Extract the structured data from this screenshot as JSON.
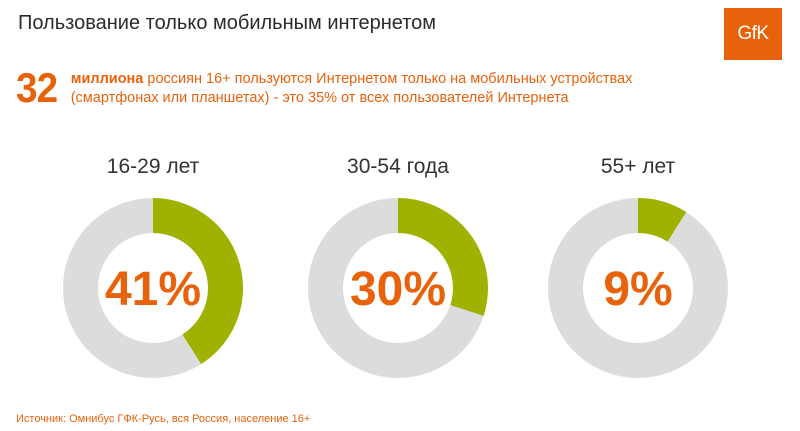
{
  "title": "Пользование только мобильным интернетом",
  "logo_text": "GfK",
  "headline": {
    "number": "32",
    "bold": "миллиона",
    "line1_rest": " россиян 16+ пользуются Интернетом только на мобильных устройствах",
    "line2": "(смартфонах или планшетах) - это 35% от всех пользователей Интернета"
  },
  "source": "Источник: Омнибус ГФК-Русь, вся Россия, население 16+",
  "colors": {
    "accent": "#e8620c",
    "highlight": "#9fb200",
    "track": "#dcdcdc",
    "logo_bg": "#e8620c"
  },
  "chart_data": {
    "type": "pie",
    "variant": "donut",
    "unit": "%",
    "series": [
      {
        "name": "16-29 лет",
        "value": 41,
        "label": "41%"
      },
      {
        "name": "30-54 года",
        "value": 30,
        "label": "30%"
      },
      {
        "name": "55+ лет",
        "value": 9,
        "label": "9%"
      }
    ]
  }
}
